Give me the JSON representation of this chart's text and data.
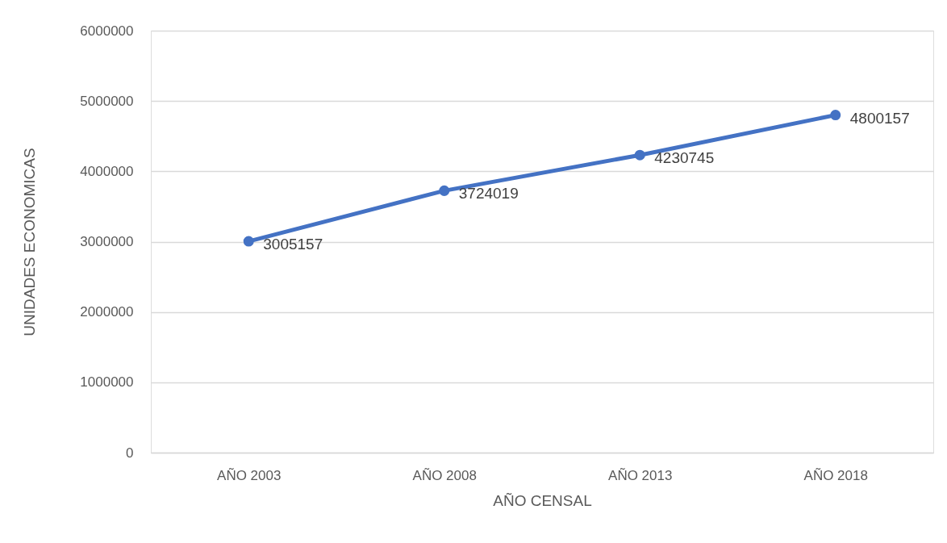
{
  "chart_data": {
    "type": "line",
    "xlabel": "AÑO CENSAL",
    "ylabel": "UNIDADES ECONOMICAS",
    "categories": [
      "AÑO 2003",
      "AÑO 2008",
      "AÑO 2013",
      "AÑO 2018"
    ],
    "series": [
      {
        "color": "#4472c4",
        "values": [
          3005157,
          3724019,
          4230745,
          4800157
        ]
      }
    ],
    "ylim": [
      0,
      6000000
    ],
    "yticks": [
      0,
      1000000,
      2000000,
      3000000,
      4000000,
      5000000,
      6000000
    ],
    "grid": "y",
    "marker": "circle",
    "line_style": "solid",
    "data_labels": true
  }
}
